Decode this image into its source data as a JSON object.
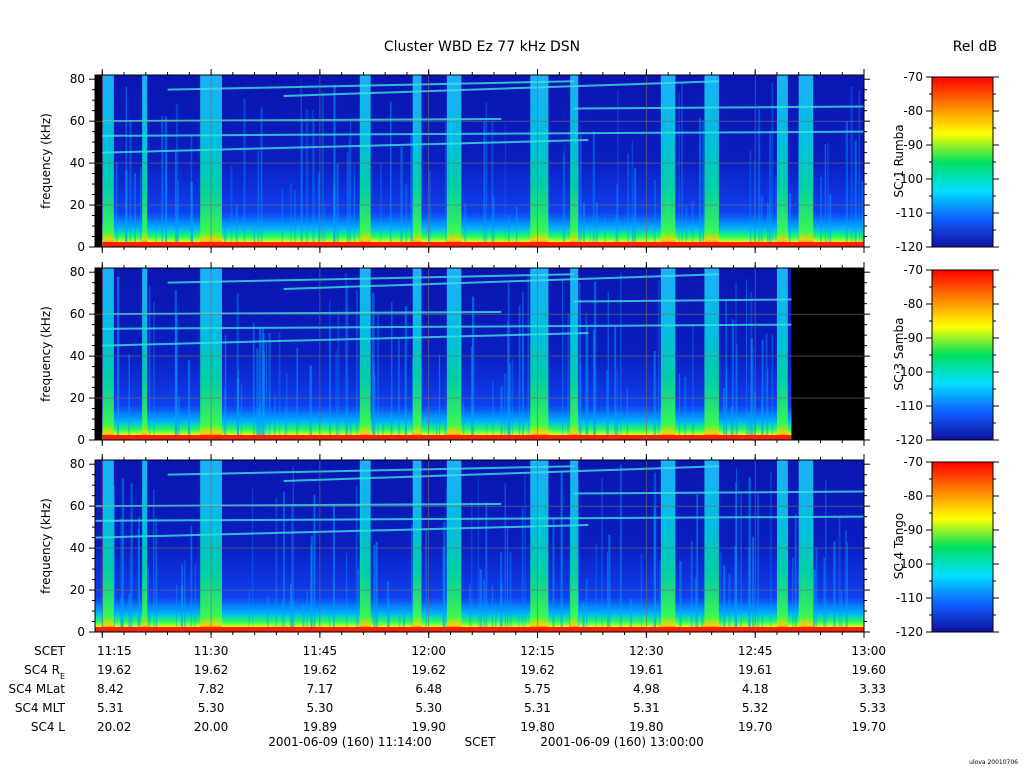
{
  "title": "Cluster WBD Ez 77 kHz DSN",
  "colorbar_label": "Rel dB",
  "credit": "ulova 20010706",
  "colors": {
    "background": "#000000",
    "grid": "#6f6f6f"
  },
  "chart_data": {
    "type": "heatmap",
    "y_axis": {
      "label": "frequency (kHz)",
      "ticks": [
        0,
        20,
        40,
        60,
        80
      ],
      "range": [
        0,
        82
      ]
    },
    "x_axis": {
      "ticks": [
        "11:15",
        "11:30",
        "11:45",
        "12:00",
        "12:15",
        "12:30",
        "12:45",
        "13:00"
      ],
      "range_minutes": [
        674,
        780
      ]
    },
    "colorbar": {
      "ticks": [
        -70,
        -80,
        -90,
        -100,
        -110,
        -120
      ],
      "range": [
        -120,
        -70
      ],
      "stops": [
        "#1010a0",
        "#1060ff",
        "#00e0ff",
        "#00e060",
        "#ffff00",
        "#ff8000",
        "#ff0000"
      ]
    },
    "panels": [
      {
        "spacecraft": "SC 1 Rumba",
        "data_start": "11:15",
        "data_end": "13:00"
      },
      {
        "spacecraft": "SC 3 Samba",
        "data_start": "11:15",
        "data_end": "12:50"
      },
      {
        "spacecraft": "SC 4 Tango",
        "data_start": "11:14",
        "data_end": "13:00"
      }
    ],
    "ephemeris": {
      "rows": [
        {
          "label": "SCET",
          "values": [
            "11:15",
            "11:30",
            "11:45",
            "12:00",
            "12:15",
            "12:30",
            "12:45",
            "13:00"
          ]
        },
        {
          "label": "SC4 R",
          "sub": "E",
          "values": [
            "19.62",
            "19.62",
            "19.62",
            "19.62",
            "19.62",
            "19.61",
            "19.61",
            "19.60"
          ]
        },
        {
          "label": "SC4 MLat",
          "values": [
            "8.42",
            "7.82",
            "7.17",
            "6.48",
            "5.75",
            "4.98",
            "4.18",
            "3.33"
          ]
        },
        {
          "label": "SC4 MLT",
          "values": [
            "5.31",
            "5.30",
            "5.30",
            "5.30",
            "5.31",
            "5.31",
            "5.32",
            "5.33"
          ]
        },
        {
          "label": "SC4 L",
          "values": [
            "20.02",
            "20.00",
            "19.89",
            "19.90",
            "19.80",
            "19.80",
            "19.70",
            "19.70"
          ]
        }
      ]
    },
    "time_range": {
      "start": "2001-06-09 (160) 11:14:00",
      "mid_label": "SCET",
      "end": "2001-06-09 (160) 13:00:00"
    }
  }
}
